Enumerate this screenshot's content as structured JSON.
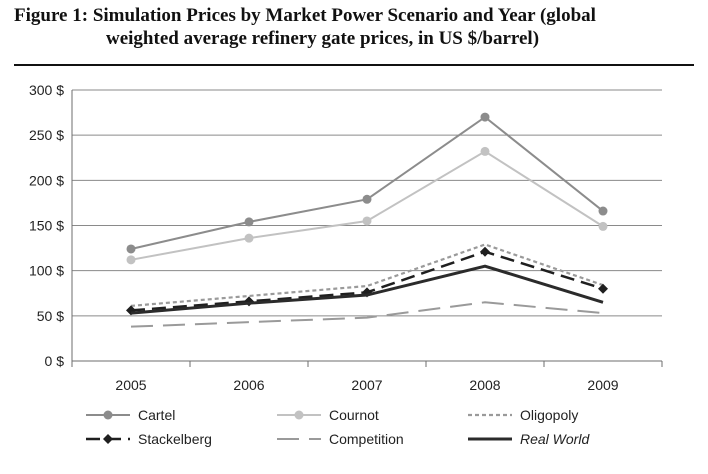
{
  "figure": {
    "label": "Figure 1:",
    "title_line1": "Simulation Prices by Market Power Scenario and Year (global",
    "title_line2": "weighted average refinery gate prices, in US $/barrel)"
  },
  "chart_data": {
    "type": "line",
    "categories": [
      "2005",
      "2006",
      "2007",
      "2008",
      "2009"
    ],
    "ylim": [
      0,
      300
    ],
    "yticks": [
      0,
      50,
      100,
      150,
      200,
      250,
      300
    ],
    "ytick_labels": [
      "0 $",
      "50 $",
      "100 $",
      "150 $",
      "200 $",
      "250 $",
      "300 $"
    ],
    "grid": true,
    "legend_position": "bottom",
    "series": [
      {
        "name": "Cartel",
        "values": [
          124,
          154,
          179,
          270,
          166
        ],
        "color": "#8c8c8c",
        "style": "solid",
        "marker": "circle"
      },
      {
        "name": "Cournot",
        "values": [
          112,
          136,
          155,
          232,
          149
        ],
        "color": "#c2c2c2",
        "style": "solid",
        "marker": "circle"
      },
      {
        "name": "Oligopoly",
        "values": [
          61,
          72,
          83,
          129,
          84
        ],
        "color": "#9a9a9a",
        "style": "dotted",
        "marker": "none"
      },
      {
        "name": "Stackelberg",
        "values": [
          56,
          66,
          76,
          121,
          80
        ],
        "color": "#1f1f1f",
        "style": "dashed",
        "marker": "diamond"
      },
      {
        "name": "Competition",
        "values": [
          38,
          43,
          48,
          65,
          53
        ],
        "color": "#9a9a9a",
        "style": "longdash",
        "marker": "none"
      },
      {
        "name": "Real World",
        "values": [
          53,
          64,
          73,
          105,
          65
        ],
        "color": "#2b2b2b",
        "style": "solid-thick",
        "marker": "none",
        "italic": true
      }
    ]
  }
}
